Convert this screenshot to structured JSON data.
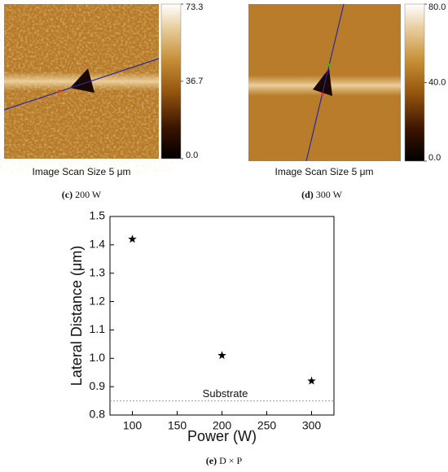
{
  "images": [
    {
      "scan_label": "Image Scan Size  5 μm",
      "caption": {
        "label": "(c)",
        "text": "200 W"
      },
      "colorbar_lim": [
        0,
        73.3
      ],
      "colorbar_ticks": [
        73.3,
        36.7,
        {
          "value": 0,
          "label": "0.0"
        }
      ]
    },
    {
      "scan_label": "Image Scan Size  5 μm",
      "caption": {
        "label": "(d)",
        "text": "300 W"
      },
      "colorbar_lim": [
        0,
        80
      ],
      "colorbar_ticks": [
        {
          "value": 80,
          "label": "80.0"
        },
        {
          "value": 40,
          "label": "40.0"
        },
        {
          "value": 0,
          "label": "0.0"
        }
      ]
    }
  ],
  "chart_data": {
    "type": "scatter",
    "x_label": "Power (W)",
    "y_label": "Lateral Distance (μm)",
    "caption": {
      "label": "(e)",
      "text": "D × P"
    },
    "series": [
      {
        "x": [
          100,
          200,
          300
        ],
        "values": [
          1.42,
          1.01,
          0.92
        ],
        "color": "#000000",
        "marker": "star"
      }
    ],
    "xlim": [
      75,
      325
    ],
    "xticks": [
      100,
      150,
      200,
      250,
      300
    ],
    "ylim": [
      0.8,
      1.5
    ],
    "yticks": [
      {
        "value": 0.8,
        "label": "0.8"
      },
      0.9,
      {
        "value": 1,
        "label": "1.0"
      },
      1.1,
      1.2,
      1.3,
      1.4,
      1.5
    ],
    "reference_line": {
      "value": 0.85,
      "label": "Substrate",
      "color": "#999999"
    }
  }
}
